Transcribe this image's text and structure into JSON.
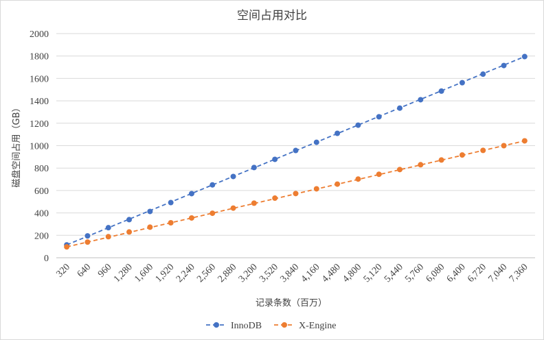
{
  "chart_data": {
    "type": "line",
    "title": "空间占用对比",
    "xlabel": "记录条数（百万）",
    "ylabel": "磁盘空间占用（GB）",
    "categories": [
      "320",
      "640",
      "960",
      "1,280",
      "1,600",
      "1,920",
      "2,240",
      "2,560",
      "2,880",
      "3,200",
      "3,520",
      "3,840",
      "4,160",
      "4,480",
      "4,800",
      "5,120",
      "5,440",
      "5,760",
      "6,080",
      "6,400",
      "6,720",
      "7,040",
      "7,360"
    ],
    "x": [
      320,
      640,
      960,
      1280,
      1600,
      1920,
      2240,
      2560,
      2880,
      3200,
      3520,
      3840,
      4160,
      4480,
      4800,
      5120,
      5440,
      5760,
      6080,
      6400,
      6720,
      7040,
      7360
    ],
    "ylim": [
      0,
      2000
    ],
    "yticks": [
      "0",
      "200",
      "400",
      "600",
      "800",
      "1000",
      "1200",
      "1400",
      "1600",
      "1800",
      "2000"
    ],
    "grid": true,
    "legend_position": "bottom",
    "series": [
      {
        "name": "InnoDB",
        "color": "#4472c4",
        "values": [
          115,
          195,
          268,
          340,
          413,
          492,
          572,
          650,
          725,
          805,
          878,
          957,
          1030,
          1110,
          1183,
          1258,
          1335,
          1410,
          1487,
          1562,
          1638,
          1715,
          1795
        ]
      },
      {
        "name": "X-Engine",
        "color": "#ed7d31",
        "values": [
          97,
          140,
          188,
          230,
          273,
          312,
          355,
          397,
          443,
          487,
          532,
          573,
          615,
          657,
          702,
          745,
          787,
          830,
          872,
          917,
          958,
          1000,
          1043
        ]
      }
    ]
  }
}
